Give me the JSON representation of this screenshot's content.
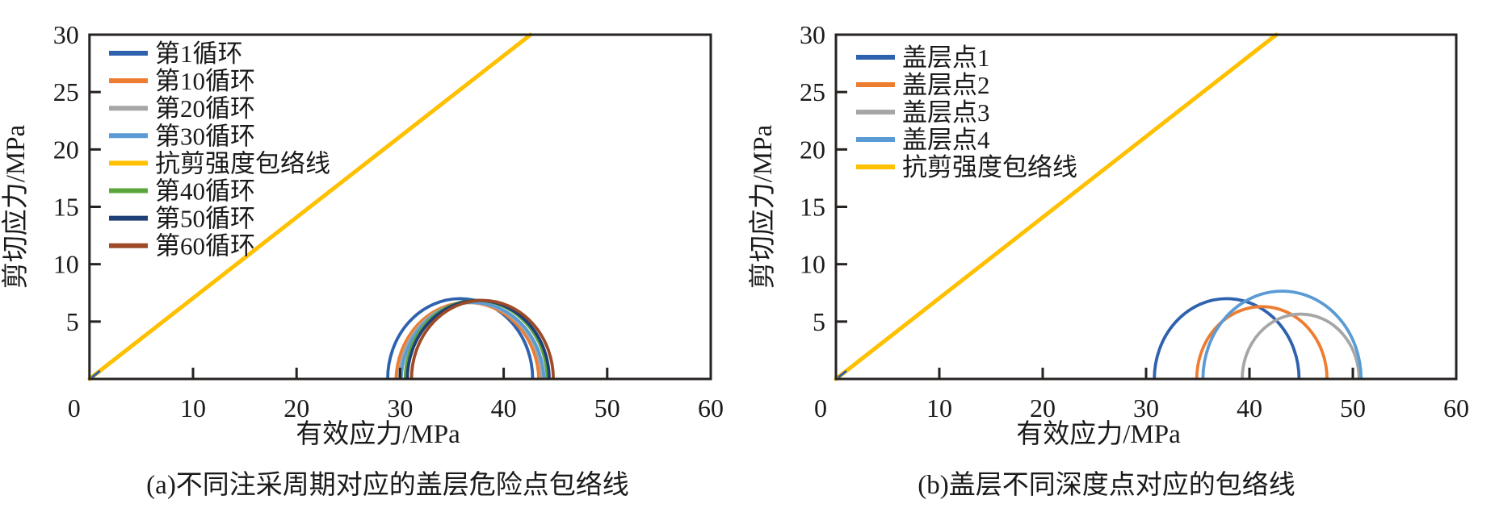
{
  "figure": {
    "background": "#ffffff",
    "frame_color": "#262220",
    "text_color": "#1a1a1a"
  },
  "chart_data": [
    {
      "id": "a",
      "type": "line",
      "subtype": "mohr-circles-with-failure-envelope",
      "caption": "(a)不同注采周期对应的盖层危险点包络线",
      "xlabel": "有效应力/MPa",
      "ylabel": "剪切应力/MPa",
      "xlim": [
        0,
        60
      ],
      "ylim": [
        0,
        30
      ],
      "xticks": [
        0,
        10,
        20,
        30,
        40,
        50,
        60
      ],
      "yticks": [
        5,
        10,
        15,
        20,
        25,
        30
      ],
      "grid": false,
      "legend_position": "upper-left-inside",
      "envelope": {
        "label": "抗剪强度包络线",
        "color": "#FFC000",
        "points": [
          [
            0,
            0
          ],
          [
            42.6,
            30
          ]
        ]
      },
      "legend": [
        {
          "label": "第1循环",
          "color": "#2E62AE"
        },
        {
          "label": "第10循环",
          "color": "#ED7D31"
        },
        {
          "label": "第20循环",
          "color": "#A6A6A6"
        },
        {
          "label": "第30循环",
          "color": "#5B9BD5"
        },
        {
          "label": "抗剪强度包络线",
          "color": "#FFC000"
        },
        {
          "label": "第40循环",
          "color": "#5BA63C"
        },
        {
          "label": "第50循环",
          "color": "#1F3F77"
        },
        {
          "label": "第60循环",
          "color": "#9E4A26"
        }
      ],
      "mohr_circles": [
        {
          "label": "第1循环",
          "color": "#2E62AE",
          "sigma_min": 28.8,
          "sigma_max": 42.8
        },
        {
          "label": "第10循环",
          "color": "#ED7D31",
          "sigma_min": 29.6,
          "sigma_max": 43.4
        },
        {
          "label": "第20循环",
          "color": "#A6A6A6",
          "sigma_min": 29.9,
          "sigma_max": 43.7
        },
        {
          "label": "第30循环",
          "color": "#5B9BD5",
          "sigma_min": 30.1,
          "sigma_max": 43.9
        },
        {
          "label": "第40循环",
          "color": "#5BA63C",
          "sigma_min": 30.5,
          "sigma_max": 44.2
        },
        {
          "label": "第50循环",
          "color": "#1F3F77",
          "sigma_min": 30.7,
          "sigma_max": 44.4
        },
        {
          "label": "第60循环",
          "color": "#9E4A26",
          "sigma_min": 31.1,
          "sigma_max": 44.8
        }
      ]
    },
    {
      "id": "b",
      "type": "line",
      "subtype": "mohr-circles-with-failure-envelope",
      "caption": "(b)盖层不同深度点对应的包络线",
      "xlabel": "有效应力/MPa",
      "ylabel": "剪切应力/MPa",
      "xlim": [
        0,
        60
      ],
      "ylim": [
        0,
        30
      ],
      "xticks": [
        0,
        10,
        20,
        30,
        40,
        50,
        60
      ],
      "yticks": [
        5,
        10,
        15,
        20,
        25,
        30
      ],
      "grid": false,
      "legend_position": "upper-left-inside",
      "envelope": {
        "label": "抗剪强度包络线",
        "color": "#FFC000",
        "points": [
          [
            0,
            0
          ],
          [
            42.6,
            30
          ]
        ]
      },
      "legend": [
        {
          "label": "盖层点1",
          "color": "#2E62AE"
        },
        {
          "label": "盖层点2",
          "color": "#ED7D31"
        },
        {
          "label": "盖层点3",
          "color": "#A6A6A6"
        },
        {
          "label": "盖层点4",
          "color": "#5B9BD5"
        },
        {
          "label": "抗剪强度包络线",
          "color": "#FFC000"
        }
      ],
      "mohr_circles": [
        {
          "label": "盖层点1",
          "color": "#2E62AE",
          "sigma_min": 30.8,
          "sigma_max": 44.8
        },
        {
          "label": "盖层点2",
          "color": "#ED7D31",
          "sigma_min": 34.9,
          "sigma_max": 47.5
        },
        {
          "label": "盖层点3",
          "color": "#A6A6A6",
          "sigma_min": 39.3,
          "sigma_max": 50.6
        },
        {
          "label": "盖层点4",
          "color": "#5B9BD5",
          "sigma_min": 35.5,
          "sigma_max": 50.8
        }
      ]
    }
  ]
}
